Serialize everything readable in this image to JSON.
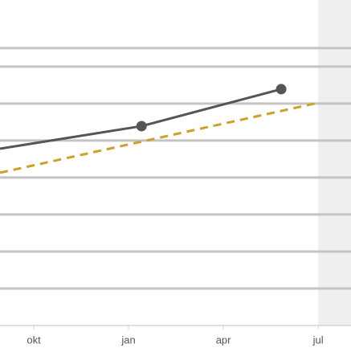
{
  "chart_data": {
    "type": "line",
    "xlim": [
      -1.07,
      10.04
    ],
    "ylim": [
      0,
      8.8
    ],
    "xticks": [
      {
        "value": 0,
        "label": "okt"
      },
      {
        "value": 3,
        "label": "jan"
      },
      {
        "value": 6,
        "label": "apr"
      },
      {
        "value": 9,
        "label": "jul"
      }
    ],
    "yticks": [
      1,
      2,
      3,
      4,
      5,
      6,
      7,
      7.5
    ],
    "grid": true,
    "shade_from": 9,
    "series": [
      {
        "color": "#555555",
        "dash": false,
        "markers": true,
        "x": [
          -1.07,
          3.41,
          7.83
        ],
        "values": [
          4.78,
          5.39,
          6.39
        ]
      },
      {
        "color": "#c9a227",
        "dash": true,
        "markers": false,
        "x": [
          -1.07,
          9
        ],
        "values": [
          4.13,
          6.02
        ]
      }
    ]
  }
}
